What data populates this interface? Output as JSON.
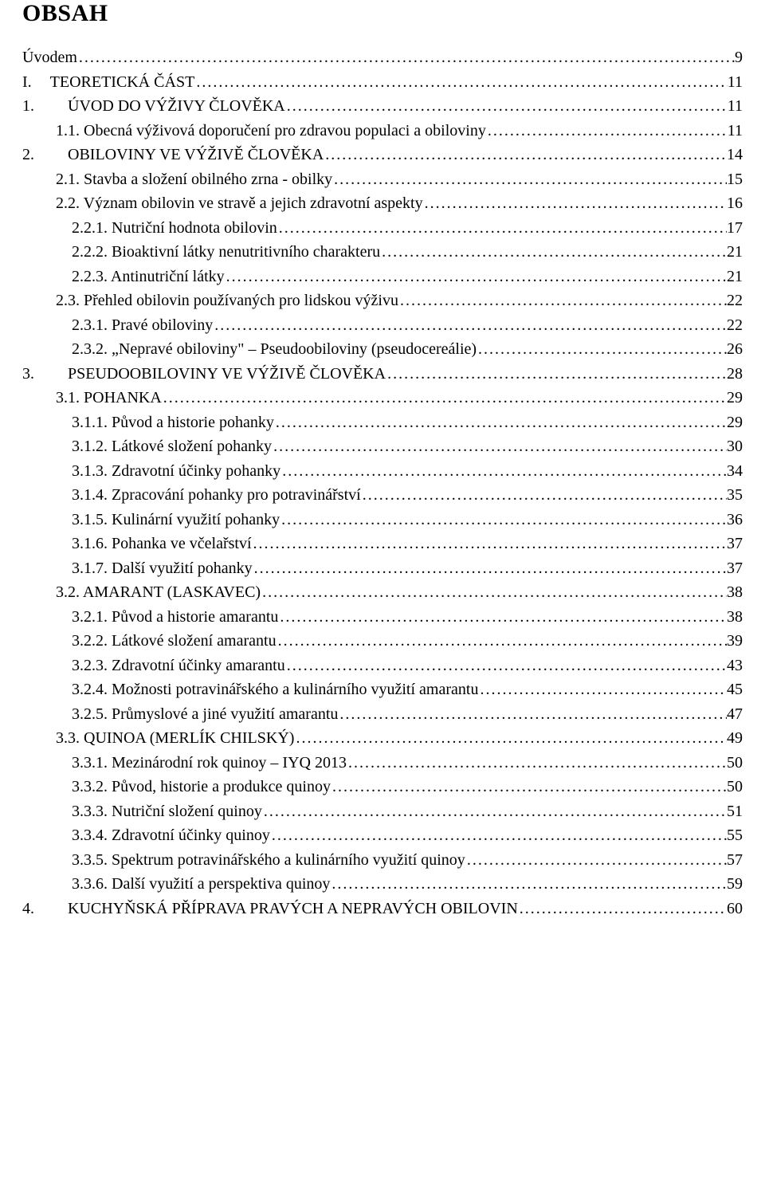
{
  "heading": "OBSAH",
  "entries": [
    {
      "indent": 0,
      "num": "",
      "label": "Úvodem",
      "page": "9"
    },
    {
      "indent": 0,
      "num": "I.",
      "label": "TEORETICKÁ ČÁST",
      "page": "11",
      "numClass": "num-w-roman"
    },
    {
      "indent": 0,
      "num": "1.",
      "label": "ÚVOD DO VÝŽIVY ČLOVĚKA",
      "page": "11",
      "numClass": "num-w-chapter"
    },
    {
      "indent": 1,
      "num": "1.1.",
      "label": "Obecná výživová doporučení pro zdravou populaci a obiloviny",
      "page": "11"
    },
    {
      "indent": 0,
      "num": "2.",
      "label": "OBILOVINY VE VÝŽIVĚ ČLOVĚKA",
      "page": "14",
      "numClass": "num-w-chapter"
    },
    {
      "indent": 1,
      "num": "2.1.",
      "label": "Stavba a složení obilného zrna - obilky",
      "page": "15"
    },
    {
      "indent": 1,
      "num": "2.2.",
      "label": "Význam obilovin ve stravě a jejich zdravotní aspekty",
      "page": "16"
    },
    {
      "indent": 2,
      "num": "2.2.1.",
      "label": "Nutriční hodnota obilovin",
      "page": "17"
    },
    {
      "indent": 2,
      "num": "2.2.2.",
      "label": "Bioaktivní látky nenutritivního charakteru",
      "page": "21"
    },
    {
      "indent": 2,
      "num": "2.2.3.",
      "label": "Antinutriční látky",
      "page": "21"
    },
    {
      "indent": 1,
      "num": "2.3.",
      "label": "Přehled obilovin používaných pro lidskou výživu",
      "page": "22"
    },
    {
      "indent": 2,
      "num": "2.3.1.",
      "label": "Pravé obiloviny",
      "page": "22"
    },
    {
      "indent": 2,
      "num": "2.3.2.",
      "label": "„Nepravé obiloviny\" – Pseudoobiloviny (pseudocereálie)",
      "page": "26"
    },
    {
      "indent": 0,
      "num": "3.",
      "label": "PSEUDOOBILOVINY VE VÝŽIVĚ ČLOVĚKA",
      "page": "28",
      "numClass": "num-w-chapter"
    },
    {
      "indent": 1,
      "num": "3.1.",
      "label": "POHANKA",
      "page": "29"
    },
    {
      "indent": 2,
      "num": "3.1.1.",
      "label": "Původ a historie pohanky",
      "page": "29"
    },
    {
      "indent": 2,
      "num": "3.1.2.",
      "label": "Látkové složení pohanky",
      "page": "30"
    },
    {
      "indent": 2,
      "num": "3.1.3.",
      "label": "Zdravotní účinky pohanky",
      "page": "34"
    },
    {
      "indent": 2,
      "num": "3.1.4.",
      "label": "Zpracování pohanky pro potravinářství",
      "page": "35"
    },
    {
      "indent": 2,
      "num": "3.1.5.",
      "label": "Kulinární využití pohanky",
      "page": "36"
    },
    {
      "indent": 2,
      "num": "3.1.6.",
      "label": "Pohanka ve včelařství",
      "page": "37"
    },
    {
      "indent": 2,
      "num": "3.1.7.",
      "label": "Další využití pohanky",
      "page": "37"
    },
    {
      "indent": 1,
      "num": "3.2.",
      "label": "AMARANT (LASKAVEC)",
      "page": "38"
    },
    {
      "indent": 2,
      "num": "3.2.1.",
      "label": "Původ a historie amarantu",
      "page": "38"
    },
    {
      "indent": 2,
      "num": "3.2.2.",
      "label": "Látkové složení amarantu",
      "page": "39"
    },
    {
      "indent": 2,
      "num": "3.2.3.",
      "label": "Zdravotní účinky amarantu",
      "page": "43"
    },
    {
      "indent": 2,
      "num": "3.2.4.",
      "label": "Možnosti potravinářského a kulinárního využití amarantu",
      "page": "45"
    },
    {
      "indent": 2,
      "num": "3.2.5.",
      "label": "Průmyslové a jiné využití amarantu",
      "page": "47"
    },
    {
      "indent": 1,
      "num": "3.3.",
      "label": "QUINOA (MERLÍK CHILSKÝ)",
      "page": "49"
    },
    {
      "indent": 2,
      "num": "3.3.1.",
      "label": "Mezinárodní rok quinoy – IYQ 2013",
      "page": "50"
    },
    {
      "indent": 2,
      "num": "3.3.2.",
      "label": "Původ, historie a produkce quinoy",
      "page": "50"
    },
    {
      "indent": 2,
      "num": "3.3.3.",
      "label": "Nutriční složení quinoy",
      "page": "51"
    },
    {
      "indent": 2,
      "num": "3.3.4.",
      "label": "Zdravotní účinky quinoy",
      "page": "55"
    },
    {
      "indent": 2,
      "num": "3.3.5.",
      "label": "Spektrum potravinářského a kulinárního využití quinoy",
      "page": "57"
    },
    {
      "indent": 2,
      "num": "3.3.6.",
      "label": "Další využití a perspektiva quinoy",
      "page": "59"
    },
    {
      "indent": 0,
      "num": "4.",
      "label": "KUCHYŇSKÁ PŘÍPRAVA PRAVÝCH A NEPRAVÝCH OBILOVIN",
      "page": "60",
      "numClass": "num-w-chapter"
    }
  ]
}
